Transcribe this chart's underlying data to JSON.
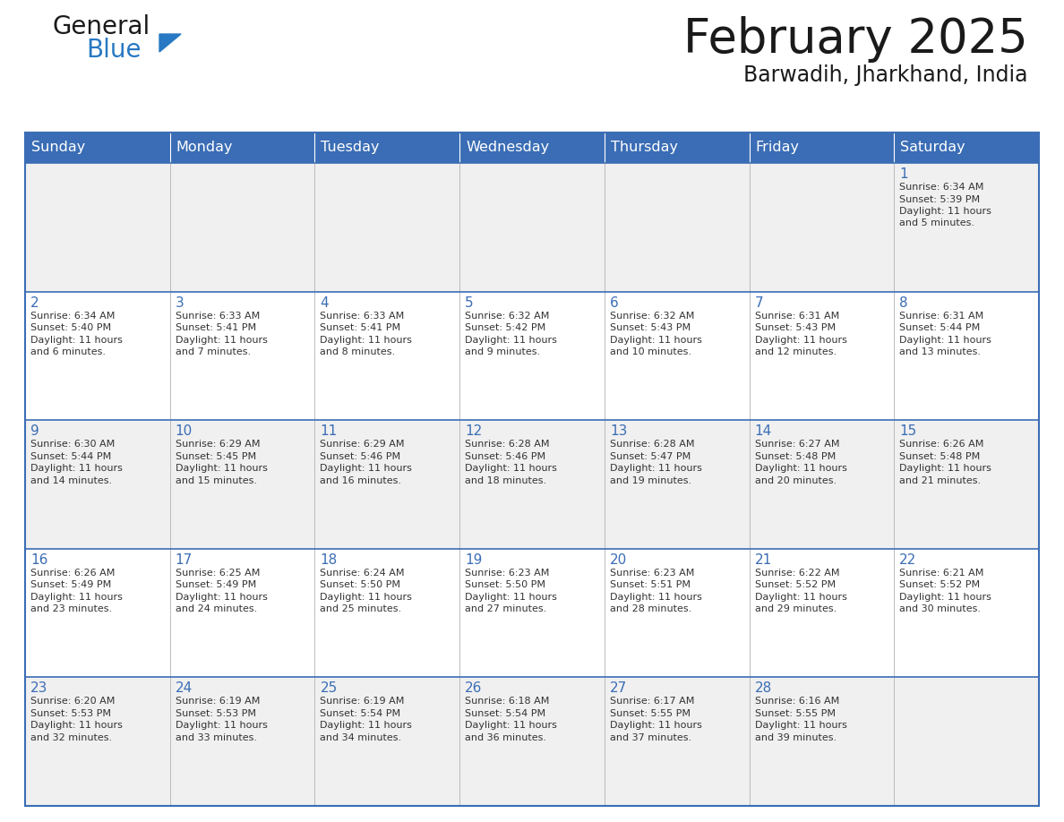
{
  "title": "February 2025",
  "subtitle": "Barwadih, Jharkhand, India",
  "days_of_week": [
    "Sunday",
    "Monday",
    "Tuesday",
    "Wednesday",
    "Thursday",
    "Friday",
    "Saturday"
  ],
  "header_bg": "#3a6db5",
  "header_text_color": "#ffffff",
  "cell_bg_light": "#f0f0f0",
  "cell_bg_white": "#ffffff",
  "border_color": "#3a6db5",
  "day_num_color": "#3a6db5",
  "cell_text_color": "#333333",
  "logo_general_color": "#1a1a1a",
  "logo_blue_color": "#2878c3",
  "calendar_data": [
    [
      null,
      null,
      null,
      null,
      null,
      null,
      {
        "day": 1,
        "sunrise": "6:34 AM",
        "sunset": "5:39 PM",
        "daylight": "11 hours",
        "daylight2": "and 5 minutes."
      }
    ],
    [
      {
        "day": 2,
        "sunrise": "6:34 AM",
        "sunset": "5:40 PM",
        "daylight": "11 hours",
        "daylight2": "and 6 minutes."
      },
      {
        "day": 3,
        "sunrise": "6:33 AM",
        "sunset": "5:41 PM",
        "daylight": "11 hours",
        "daylight2": "and 7 minutes."
      },
      {
        "day": 4,
        "sunrise": "6:33 AM",
        "sunset": "5:41 PM",
        "daylight": "11 hours",
        "daylight2": "and 8 minutes."
      },
      {
        "day": 5,
        "sunrise": "6:32 AM",
        "sunset": "5:42 PM",
        "daylight": "11 hours",
        "daylight2": "and 9 minutes."
      },
      {
        "day": 6,
        "sunrise": "6:32 AM",
        "sunset": "5:43 PM",
        "daylight": "11 hours",
        "daylight2": "and 10 minutes."
      },
      {
        "day": 7,
        "sunrise": "6:31 AM",
        "sunset": "5:43 PM",
        "daylight": "11 hours",
        "daylight2": "and 12 minutes."
      },
      {
        "day": 8,
        "sunrise": "6:31 AM",
        "sunset": "5:44 PM",
        "daylight": "11 hours",
        "daylight2": "and 13 minutes."
      }
    ],
    [
      {
        "day": 9,
        "sunrise": "6:30 AM",
        "sunset": "5:44 PM",
        "daylight": "11 hours",
        "daylight2": "and 14 minutes."
      },
      {
        "day": 10,
        "sunrise": "6:29 AM",
        "sunset": "5:45 PM",
        "daylight": "11 hours",
        "daylight2": "and 15 minutes."
      },
      {
        "day": 11,
        "sunrise": "6:29 AM",
        "sunset": "5:46 PM",
        "daylight": "11 hours",
        "daylight2": "and 16 minutes."
      },
      {
        "day": 12,
        "sunrise": "6:28 AM",
        "sunset": "5:46 PM",
        "daylight": "11 hours",
        "daylight2": "and 18 minutes."
      },
      {
        "day": 13,
        "sunrise": "6:28 AM",
        "sunset": "5:47 PM",
        "daylight": "11 hours",
        "daylight2": "and 19 minutes."
      },
      {
        "day": 14,
        "sunrise": "6:27 AM",
        "sunset": "5:48 PM",
        "daylight": "11 hours",
        "daylight2": "and 20 minutes."
      },
      {
        "day": 15,
        "sunrise": "6:26 AM",
        "sunset": "5:48 PM",
        "daylight": "11 hours",
        "daylight2": "and 21 minutes."
      }
    ],
    [
      {
        "day": 16,
        "sunrise": "6:26 AM",
        "sunset": "5:49 PM",
        "daylight": "11 hours",
        "daylight2": "and 23 minutes."
      },
      {
        "day": 17,
        "sunrise": "6:25 AM",
        "sunset": "5:49 PM",
        "daylight": "11 hours",
        "daylight2": "and 24 minutes."
      },
      {
        "day": 18,
        "sunrise": "6:24 AM",
        "sunset": "5:50 PM",
        "daylight": "11 hours",
        "daylight2": "and 25 minutes."
      },
      {
        "day": 19,
        "sunrise": "6:23 AM",
        "sunset": "5:50 PM",
        "daylight": "11 hours",
        "daylight2": "and 27 minutes."
      },
      {
        "day": 20,
        "sunrise": "6:23 AM",
        "sunset": "5:51 PM",
        "daylight": "11 hours",
        "daylight2": "and 28 minutes."
      },
      {
        "day": 21,
        "sunrise": "6:22 AM",
        "sunset": "5:52 PM",
        "daylight": "11 hours",
        "daylight2": "and 29 minutes."
      },
      {
        "day": 22,
        "sunrise": "6:21 AM",
        "sunset": "5:52 PM",
        "daylight": "11 hours",
        "daylight2": "and 30 minutes."
      }
    ],
    [
      {
        "day": 23,
        "sunrise": "6:20 AM",
        "sunset": "5:53 PM",
        "daylight": "11 hours",
        "daylight2": "and 32 minutes."
      },
      {
        "day": 24,
        "sunrise": "6:19 AM",
        "sunset": "5:53 PM",
        "daylight": "11 hours",
        "daylight2": "and 33 minutes."
      },
      {
        "day": 25,
        "sunrise": "6:19 AM",
        "sunset": "5:54 PM",
        "daylight": "11 hours",
        "daylight2": "and 34 minutes."
      },
      {
        "day": 26,
        "sunrise": "6:18 AM",
        "sunset": "5:54 PM",
        "daylight": "11 hours",
        "daylight2": "and 36 minutes."
      },
      {
        "day": 27,
        "sunrise": "6:17 AM",
        "sunset": "5:55 PM",
        "daylight": "11 hours",
        "daylight2": "and 37 minutes."
      },
      {
        "day": 28,
        "sunrise": "6:16 AM",
        "sunset": "5:55 PM",
        "daylight": "11 hours",
        "daylight2": "and 39 minutes."
      },
      null
    ]
  ]
}
